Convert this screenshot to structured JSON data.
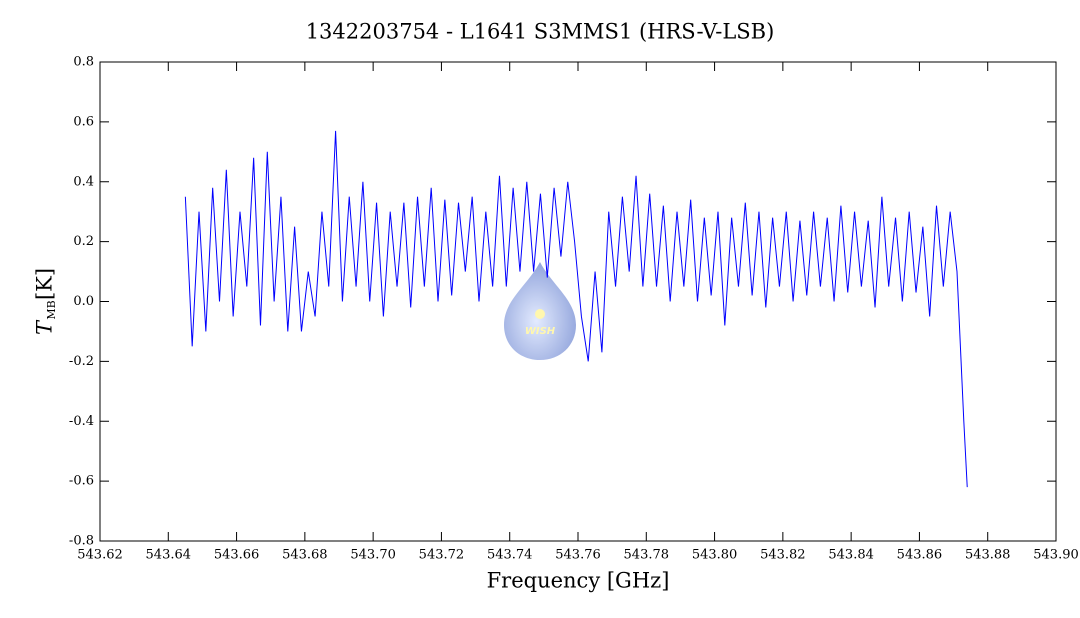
{
  "chart_data": {
    "type": "line",
    "title": "1342203754 - L1641 S3MMS1 (HRS-V-LSB)",
    "xlabel": "Frequency [GHz]",
    "ylabel": {
      "symbol": "T",
      "subscript": "MB",
      "unit": "[K]"
    },
    "annotations": [
      "WISH"
    ],
    "xlim": [
      543.62,
      543.9
    ],
    "ylim": [
      -0.8,
      0.8
    ],
    "xticks": [
      543.62,
      543.64,
      543.66,
      543.68,
      {
        "value": 543.7,
        "label": "543.70"
      },
      543.72,
      543.74,
      543.76,
      543.78,
      {
        "value": 543.8,
        "label": "543.80"
      },
      543.82,
      543.84,
      543.86,
      543.88,
      {
        "value": 543.9,
        "label": "543.90"
      }
    ],
    "yticks": [
      -0.8,
      -0.6,
      -0.4,
      -0.2,
      {
        "value": 0,
        "label": "0.0"
      },
      0.2,
      0.4,
      0.6,
      0.8
    ],
    "series": [
      {
        "name": "HRS-V-LSB",
        "color": "#0000ff",
        "x": [
          543.645,
          543.647,
          543.649,
          543.651,
          543.653,
          543.655,
          543.657,
          543.659,
          543.661,
          543.663,
          543.665,
          543.667,
          543.669,
          543.671,
          543.673,
          543.675,
          543.677,
          543.679,
          543.681,
          543.683,
          543.685,
          543.687,
          543.689,
          543.691,
          543.693,
          543.695,
          543.697,
          543.699,
          543.701,
          543.703,
          543.705,
          543.707,
          543.709,
          543.711,
          543.713,
          543.715,
          543.717,
          543.719,
          543.721,
          543.723,
          543.725,
          543.727,
          543.729,
          543.731,
          543.733,
          543.735,
          543.737,
          543.739,
          543.741,
          543.743,
          543.745,
          543.747,
          543.749,
          543.751,
          543.753,
          543.755,
          543.757,
          543.759,
          543.761,
          543.763,
          543.765,
          543.767,
          543.769,
          543.771,
          543.773,
          543.775,
          543.777,
          543.779,
          543.781,
          543.783,
          543.785,
          543.787,
          543.789,
          543.791,
          543.793,
          543.795,
          543.797,
          543.799,
          543.801,
          543.803,
          543.805,
          543.807,
          543.809,
          543.811,
          543.813,
          543.815,
          543.817,
          543.819,
          543.821,
          543.823,
          543.825,
          543.827,
          543.829,
          543.831,
          543.833,
          543.835,
          543.837,
          543.839,
          543.841,
          543.843,
          543.845,
          543.847,
          543.849,
          543.851,
          543.853,
          543.855,
          543.857,
          543.859,
          543.861,
          543.863,
          543.865,
          543.867,
          543.869,
          543.871,
          543.873,
          543.874
        ],
        "values": [
          0.35,
          -0.15,
          0.3,
          -0.1,
          0.38,
          0.0,
          0.44,
          -0.05,
          0.3,
          0.05,
          0.48,
          -0.08,
          0.5,
          0.0,
          0.35,
          -0.1,
          0.25,
          -0.1,
          0.1,
          -0.05,
          0.3,
          0.05,
          0.57,
          0.0,
          0.35,
          0.05,
          0.4,
          0.0,
          0.33,
          -0.05,
          0.3,
          0.05,
          0.33,
          -0.02,
          0.35,
          0.05,
          0.38,
          0.0,
          0.34,
          0.02,
          0.33,
          0.1,
          0.35,
          0.0,
          0.3,
          0.05,
          0.42,
          0.05,
          0.38,
          0.1,
          0.4,
          0.1,
          0.36,
          0.08,
          0.38,
          0.15,
          0.4,
          0.2,
          -0.05,
          -0.2,
          0.1,
          -0.17,
          0.3,
          0.05,
          0.35,
          0.1,
          0.42,
          0.05,
          0.36,
          0.05,
          0.32,
          0.0,
          0.3,
          0.05,
          0.34,
          0.0,
          0.28,
          0.02,
          0.3,
          -0.08,
          0.28,
          0.05,
          0.33,
          0.02,
          0.3,
          -0.02,
          0.28,
          0.05,
          0.3,
          0.0,
          0.27,
          0.02,
          0.3,
          0.05,
          0.28,
          0.0,
          0.32,
          0.03,
          0.3,
          0.05,
          0.27,
          -0.02,
          0.35,
          0.05,
          0.28,
          0.0,
          0.3,
          0.03,
          0.25,
          -0.05,
          0.32,
          0.05,
          0.3,
          0.1,
          -0.4,
          -0.62
        ]
      }
    ]
  }
}
